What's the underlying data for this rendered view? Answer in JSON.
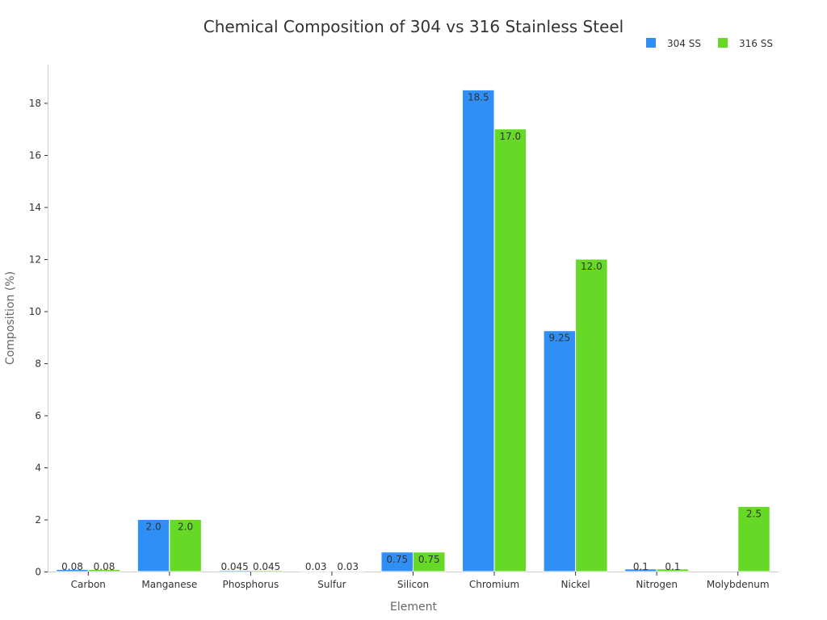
{
  "chart_data": {
    "type": "bar",
    "title": "Chemical Composition of 304 vs 316 Stainless Steel",
    "xlabel": "Element",
    "ylabel": "Composition (%)",
    "ylim": [
      0,
      19.5
    ],
    "yticks": [
      0,
      2,
      4,
      6,
      8,
      10,
      12,
      14,
      16,
      18
    ],
    "categories": [
      "Carbon",
      "Manganese",
      "Phosphorus",
      "Sulfur",
      "Silicon",
      "Chromium",
      "Nickel",
      "Nitrogen",
      "Molybdenum"
    ],
    "series": [
      {
        "name": "304 SS",
        "color": "#2f8ff5",
        "values": [
          0.08,
          2.0,
          0.045,
          0.03,
          0.75,
          18.5,
          9.25,
          0.1,
          0
        ],
        "labels": [
          "0.08",
          "2.0",
          "0.045",
          "0.03",
          "0.75",
          "18.5",
          "9.25",
          "0.1",
          ""
        ]
      },
      {
        "name": "316 SS",
        "color": "#66d926",
        "values": [
          0.08,
          2.0,
          0.045,
          0.03,
          0.75,
          17.0,
          12.0,
          0.1,
          2.5
        ],
        "labels": [
          "0.08",
          "2.0",
          "0.045",
          "0.03",
          "0.75",
          "17.0",
          "12.0",
          "0.1",
          "2.5"
        ]
      }
    ],
    "legend_position": "top-right",
    "grid": false
  }
}
